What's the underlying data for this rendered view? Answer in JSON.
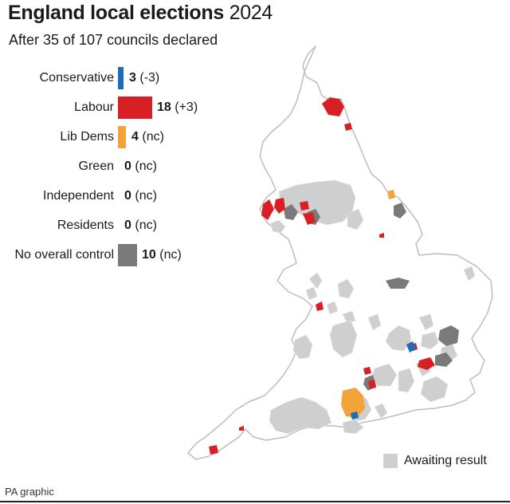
{
  "title": {
    "bold": "England local elections",
    "year": "2024"
  },
  "subtitle": "After 35 of 107 councils declared",
  "colors": {
    "conservative": "#1a6fb8",
    "labour": "#d71f25",
    "libdem": "#f2a33a",
    "noc": "#7a7a7a",
    "awaiting": "#cfcfcf",
    "outline": "#bdbdbd"
  },
  "parties": [
    {
      "name": "Conservative",
      "seats": "3",
      "change": "(-3)",
      "color": "#1a6fb8"
    },
    {
      "name": "Labour",
      "seats": "18",
      "change": "(+3)",
      "color": "#d71f25"
    },
    {
      "name": "Lib Dems",
      "seats": "4",
      "change": "(nc)",
      "color": "#f2a33a"
    },
    {
      "name": "Green",
      "seats": "0",
      "change": "(nc)",
      "color": ""
    },
    {
      "name": "Independent",
      "seats": "0",
      "change": "(nc)",
      "color": ""
    },
    {
      "name": "Residents",
      "seats": "0",
      "change": "(nc)",
      "color": ""
    },
    {
      "name": "No overall control",
      "seats": "10",
      "change": "(nc)",
      "color": "#7a7a7a"
    }
  ],
  "key": {
    "label": "Awaiting result"
  },
  "credit": "PA graphic"
}
